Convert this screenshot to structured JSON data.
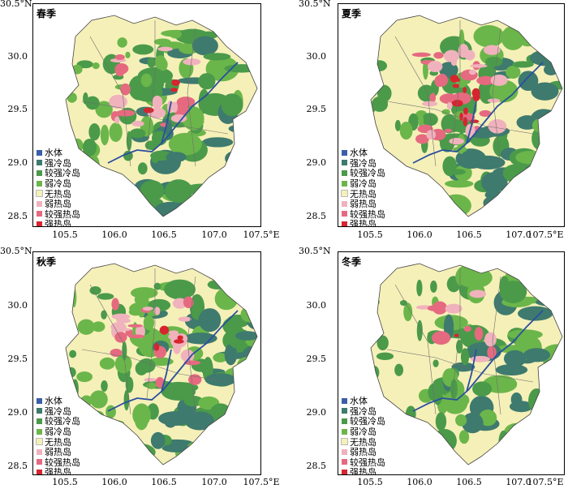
{
  "axes": {
    "y_ticks": [
      "30.5°N",
      "30.0",
      "29.5",
      "29.0",
      "28.5"
    ],
    "x_ticks": [
      "105.5",
      "106.0",
      "106.5",
      "107.0",
      "107.5°E"
    ]
  },
  "legend": [
    {
      "label": "水体",
      "color": "#3b5ea8"
    },
    {
      "label": "强冷岛",
      "color": "#3e7a6e"
    },
    {
      "label": "较强冷岛",
      "color": "#4a9a4a"
    },
    {
      "label": "弱冷岛",
      "color": "#6bb64a"
    },
    {
      "label": "无热岛",
      "color": "#f5f0b8"
    },
    {
      "label": "弱热岛",
      "color": "#f0b2bd"
    },
    {
      "label": "较强热岛",
      "color": "#e56a80"
    },
    {
      "label": "强热岛",
      "color": "#d6252f"
    }
  ],
  "panels": [
    {
      "title": "春季",
      "mix": {
        "green": 0.55,
        "pink": 0.18,
        "red": 0.03
      }
    },
    {
      "title": "夏季",
      "mix": {
        "green": 0.5,
        "pink": 0.3,
        "red": 0.12
      }
    },
    {
      "title": "秋季",
      "mix": {
        "green": 0.58,
        "pink": 0.24,
        "red": 0.04
      }
    },
    {
      "title": "冬季",
      "mix": {
        "green": 0.45,
        "pink": 0.1,
        "red": 0.01
      }
    }
  ],
  "colors": {
    "background": "#f5f0b8",
    "outline": "#444444",
    "river": "#2b4fa0"
  }
}
